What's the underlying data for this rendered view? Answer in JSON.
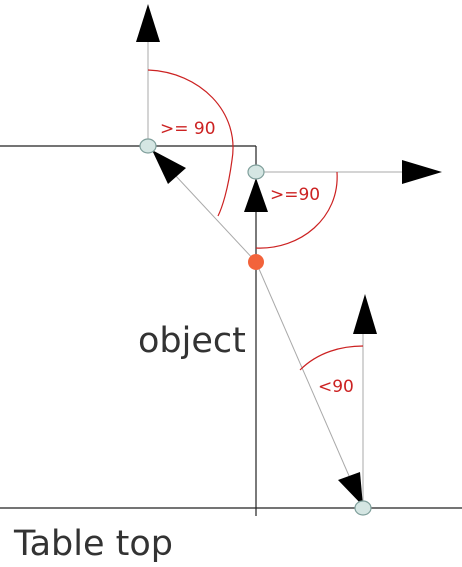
{
  "labels": {
    "angle_top": ">= 90",
    "angle_middle": ">=90",
    "angle_bottom": "<90",
    "object": "object",
    "table": "Table top"
  },
  "colors": {
    "angle_label": "#cc2222",
    "contact_point": "#f2633b",
    "corner_point": "#d5e6e3"
  }
}
